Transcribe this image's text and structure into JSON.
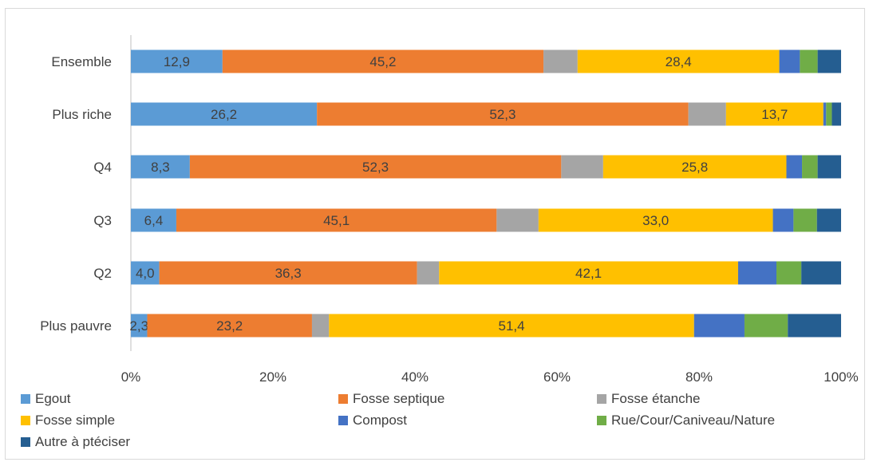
{
  "chart_data": {
    "type": "bar",
    "orientation": "horizontal",
    "stacked": "percent",
    "categories": [
      "Ensemble",
      "Plus riche",
      "Q4",
      "Q3",
      "Q2",
      "Plus pauvre"
    ],
    "series": [
      {
        "name": "Egout",
        "color": "#5B9BD5",
        "values": [
          12.9,
          26.2,
          8.3,
          6.4,
          4.0,
          2.3
        ],
        "labels": [
          "12,9",
          "26,2",
          "8,3",
          "6,4",
          "4,0",
          "2,3"
        ]
      },
      {
        "name": "Fosse septique",
        "color": "#ED7D31",
        "values": [
          45.2,
          52.3,
          52.3,
          45.1,
          36.3,
          23.2
        ],
        "labels": [
          "45,2",
          "52,3",
          "52,3",
          "45,1",
          "36,3",
          "23,2"
        ]
      },
      {
        "name": "Fosse étanche",
        "color": "#A5A5A5",
        "values": [
          4.8,
          5.3,
          5.9,
          5.9,
          3.1,
          2.4
        ],
        "labels": [
          "",
          "",
          "",
          "",
          "",
          ""
        ]
      },
      {
        "name": "Fosse simple",
        "color": "#FFC000",
        "values": [
          28.4,
          13.7,
          25.8,
          33.0,
          42.1,
          51.4
        ],
        "labels": [
          "28,4",
          "13,7",
          "25,8",
          "33,0",
          "42,1",
          "51,4"
        ]
      },
      {
        "name": "Compost",
        "color": "#4472C4",
        "values": [
          2.9,
          0.4,
          2.2,
          2.9,
          5.4,
          7.1
        ],
        "labels": [
          "",
          "",
          "",
          "",
          "",
          ""
        ]
      },
      {
        "name": "Rue/Cour/Caniveau/Nature",
        "color": "#70AD47",
        "values": [
          2.5,
          0.8,
          2.2,
          3.3,
          3.5,
          6.1
        ],
        "labels": [
          "",
          "",
          "",
          "",
          "",
          ""
        ]
      },
      {
        "name": "Autre à ptéciser",
        "color": "#255E91",
        "values": [
          3.3,
          1.3,
          3.3,
          3.4,
          5.6,
          7.5
        ],
        "labels": [
          "",
          "",
          "",
          "",
          "",
          ""
        ]
      }
    ],
    "xticks": [
      "0%",
      "20%",
      "40%",
      "60%",
      "80%",
      "100%"
    ],
    "xlim": [
      0,
      100
    ],
    "grid": false,
    "legend_position": "bottom"
  }
}
